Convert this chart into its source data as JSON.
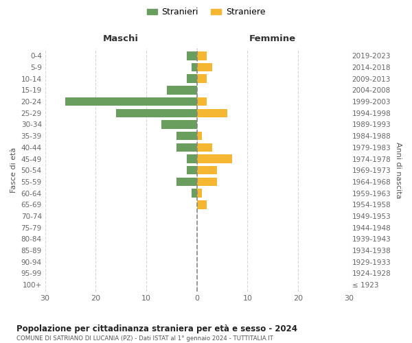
{
  "age_groups": [
    "100+",
    "95-99",
    "90-94",
    "85-89",
    "80-84",
    "75-79",
    "70-74",
    "65-69",
    "60-64",
    "55-59",
    "50-54",
    "45-49",
    "40-44",
    "35-39",
    "30-34",
    "25-29",
    "20-24",
    "15-19",
    "10-14",
    "5-9",
    "0-4"
  ],
  "birth_years": [
    "≤ 1923",
    "1924-1928",
    "1929-1933",
    "1934-1938",
    "1939-1943",
    "1944-1948",
    "1949-1953",
    "1954-1958",
    "1959-1963",
    "1964-1968",
    "1969-1973",
    "1974-1978",
    "1979-1983",
    "1984-1988",
    "1989-1993",
    "1994-1998",
    "1999-2003",
    "2004-2008",
    "2009-2013",
    "2014-2018",
    "2019-2023"
  ],
  "males": [
    0,
    0,
    0,
    0,
    0,
    0,
    0,
    0,
    1,
    4,
    2,
    2,
    4,
    4,
    7,
    16,
    26,
    6,
    2,
    1,
    2
  ],
  "females": [
    0,
    0,
    0,
    0,
    0,
    0,
    0,
    2,
    1,
    4,
    4,
    7,
    3,
    1,
    0,
    6,
    2,
    0,
    2,
    3,
    2
  ],
  "male_color": "#6a9e5e",
  "female_color": "#f5b731",
  "center_line_color": "#888888",
  "grid_color": "#cccccc",
  "background_color": "#ffffff",
  "title": "Popolazione per cittadinanza straniera per età e sesso - 2024",
  "subtitle": "COMUNE DI SATRIANO DI LUCANIA (PZ) - Dati ISTAT al 1° gennaio 2024 - TUTTITALIA.IT",
  "xlabel_left": "Maschi",
  "xlabel_right": "Femmine",
  "ylabel_left": "Fasce di età",
  "ylabel_right": "Anni di nascita",
  "legend_male": "Stranieri",
  "legend_female": "Straniere",
  "xlim": 30,
  "bar_height": 0.75
}
